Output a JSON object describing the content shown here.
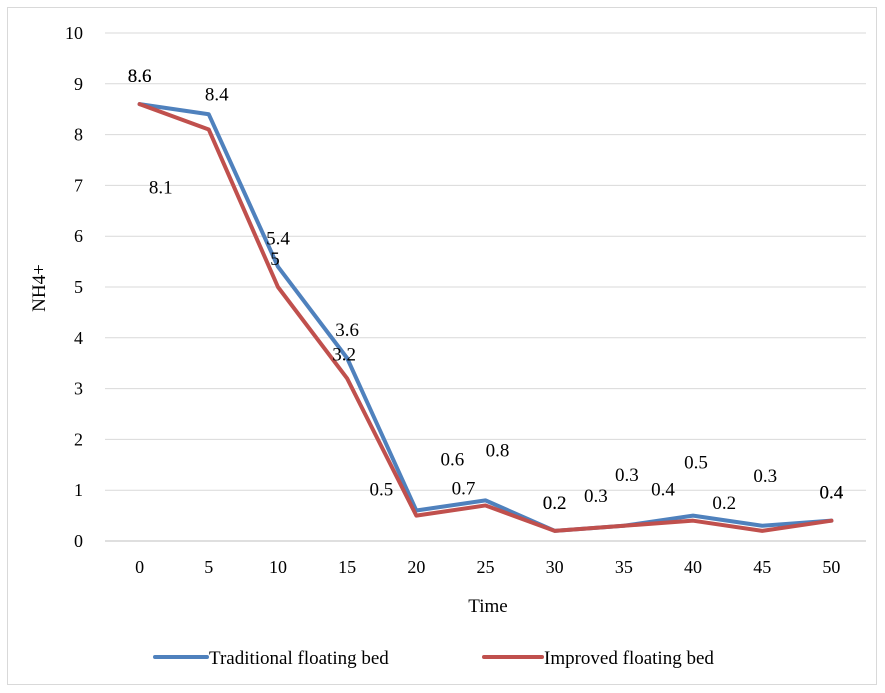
{
  "chart_data": {
    "type": "line",
    "title": "",
    "xlabel": "Time",
    "ylabel": "NH4+",
    "ylim": [
      0,
      10
    ],
    "yticks": [
      0,
      1,
      2,
      3,
      4,
      5,
      6,
      7,
      8,
      9,
      10
    ],
    "grid": true,
    "legend_position": "bottom",
    "categories": [
      "0",
      "5",
      "10",
      "15",
      "20",
      "25",
      "30",
      "35",
      "40",
      "45",
      "50"
    ],
    "series": [
      {
        "name": "Traditional floating bed",
        "color": "#4f81bd",
        "values": [
          8.6,
          8.4,
          5.4,
          3.6,
          0.6,
          0.8,
          0.2,
          0.3,
          0.5,
          0.3,
          0.4
        ]
      },
      {
        "name": "Improved floating bed",
        "color": "#c0504d",
        "values": [
          8.6,
          8.1,
          5,
          3.2,
          0.5,
          0.7,
          0.2,
          0.3,
          0.4,
          0.2,
          0.4
        ]
      }
    ]
  }
}
